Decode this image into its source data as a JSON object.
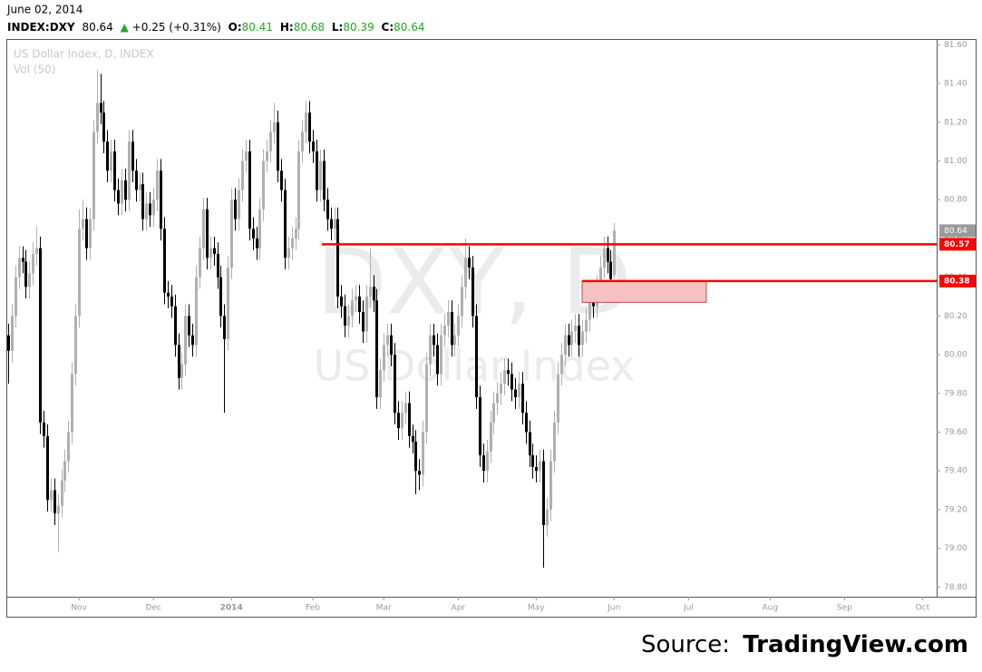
{
  "header": {
    "date": "June 02, 2014",
    "symbol": "INDEX:DXY",
    "last": "80.64",
    "change": "+0.25 (+0.31%)",
    "o_label": "O:",
    "o": "80.41",
    "h_label": "H:",
    "h": "80.68",
    "l_label": "L:",
    "l": "80.39",
    "c_label": "C:",
    "c": "80.64"
  },
  "chart_data": {
    "type": "candlestick",
    "watermark": "DXY, D",
    "watermark_sub": "US Dollar Index",
    "indicator": "Vol (50)",
    "up_color": "#b0b0b0",
    "down_color": "#000000",
    "xlim": [
      -0.5,
      262
    ],
    "xticks": [
      {
        "value": 20,
        "label": "Nov"
      },
      {
        "value": 41,
        "label": "Dec"
      },
      {
        "value": 63,
        "label": "2014"
      },
      {
        "value": 86,
        "label": "Feb"
      },
      {
        "value": 106,
        "label": "Mar"
      },
      {
        "value": 127,
        "label": "Apr"
      },
      {
        "value": 149,
        "label": "May"
      },
      {
        "value": 171,
        "label": "Jun"
      },
      {
        "value": 192,
        "label": "Jul"
      },
      {
        "value": 215,
        "label": "Aug"
      },
      {
        "value": 236,
        "label": "Sep"
      },
      {
        "value": 258,
        "label": "Oct"
      }
    ],
    "ylim": [
      78.75,
      81.63
    ],
    "yticks": [
      {
        "value": 78.8,
        "label": "78.80"
      },
      {
        "value": 79.0,
        "label": "79.00"
      },
      {
        "value": 79.2,
        "label": "79.20"
      },
      {
        "value": 79.4,
        "label": "79.40"
      },
      {
        "value": 79.6,
        "label": "79.60"
      },
      {
        "value": 79.8,
        "label": "79.80"
      },
      {
        "value": 80.0,
        "label": "80.00"
      },
      {
        "value": 80.2,
        "label": "80.20"
      },
      {
        "value": 80.4,
        "label": "80.40"
      },
      {
        "value": 80.6,
        "label": "80.60"
      },
      {
        "value": 80.8,
        "label": "80.80"
      },
      {
        "value": 81.0,
        "label": "81.00"
      },
      {
        "value": 81.2,
        "label": "81.20"
      },
      {
        "value": 81.4,
        "label": "81.40"
      },
      {
        "value": 81.6,
        "label": "81.60"
      }
    ],
    "last_price": 80.64,
    "hlines": [
      {
        "value": 80.57,
        "color": "#ff0000"
      },
      {
        "value": 80.38,
        "color": "#ff0000"
      }
    ],
    "zone": {
      "low": 80.27,
      "high": 80.38,
      "color": "#f4c2c2"
    },
    "series": [
      {
        "name": "US Dollar Index, D, INDEX",
        "open": [
          80.1,
          80.02,
          80.2,
          80.4,
          80.5,
          80.48,
          80.35,
          80.42,
          80.52,
          80.55,
          79.65,
          79.58,
          79.25,
          79.3,
          79.18,
          79.22,
          79.35,
          79.45,
          79.6,
          79.9,
          80.2,
          80.65,
          80.7,
          80.55,
          80.7,
          81.15,
          81.3,
          81.25,
          81.1,
          80.95,
          81.05,
          80.85,
          80.78,
          80.9,
          80.8,
          81.1,
          80.95,
          80.85,
          80.88,
          80.7,
          80.78,
          80.72,
          80.8,
          80.95,
          80.65,
          80.32,
          80.3,
          80.25,
          80.05,
          79.88,
          79.95,
          80.2,
          80.1,
          80.05,
          80.4,
          80.55,
          80.75,
          80.5,
          80.55,
          80.52,
          80.4,
          80.2,
          80.08,
          80.45,
          80.8,
          80.7,
          80.85,
          81.0,
          81.05,
          80.65,
          80.6,
          80.55,
          80.75,
          81.0,
          81.05,
          81.15,
          81.2,
          80.95,
          80.85,
          80.5,
          80.55,
          80.6,
          80.65,
          81.05,
          81.15,
          81.25,
          81.1,
          81.05,
          80.85,
          81.0,
          80.8,
          80.7,
          80.65,
          80.7,
          80.3,
          80.25,
          80.15,
          80.2,
          80.28,
          80.3,
          80.22,
          80.12,
          80.3,
          80.35,
          80.28,
          79.78,
          79.92,
          80.05,
          80.1,
          80.0,
          79.7,
          79.62,
          79.7,
          79.75,
          79.58,
          79.55,
          79.4,
          79.38,
          79.6,
          79.95,
          80.1,
          80.05,
          79.9,
          80.1,
          80.15,
          80.22,
          80.05,
          80.1,
          80.2,
          80.35,
          80.5,
          80.45,
          80.2,
          79.78,
          79.48,
          79.4,
          79.5,
          79.65,
          79.75,
          79.8,
          79.85,
          79.92,
          79.9,
          79.82,
          79.78,
          79.85,
          79.7,
          79.6,
          79.48,
          79.42,
          79.4,
          79.45,
          79.12,
          79.2,
          79.45,
          79.65,
          79.9,
          80.0,
          80.1,
          80.05,
          80.12,
          80.15,
          80.05,
          80.12,
          80.18,
          80.3,
          80.25,
          80.35,
          80.45,
          80.55,
          80.48,
          80.41
        ],
        "high": [
          80.16,
          80.26,
          80.46,
          80.56,
          80.56,
          80.54,
          80.48,
          80.58,
          80.66,
          80.61,
          79.71,
          79.64,
          79.36,
          79.36,
          79.28,
          79.41,
          79.51,
          79.66,
          79.96,
          80.26,
          80.75,
          80.8,
          80.76,
          80.76,
          81.21,
          81.47,
          81.45,
          81.31,
          81.16,
          81.11,
          81.11,
          80.91,
          80.96,
          80.96,
          81.16,
          81.16,
          81.01,
          80.94,
          80.94,
          80.84,
          80.84,
          80.86,
          81.01,
          81.01,
          80.71,
          80.38,
          80.36,
          80.31,
          80.11,
          80.01,
          80.26,
          80.26,
          80.16,
          80.46,
          80.61,
          80.81,
          80.81,
          80.61,
          80.61,
          80.58,
          80.46,
          80.26,
          80.51,
          80.86,
          80.86,
          80.91,
          81.06,
          81.11,
          81.11,
          80.71,
          80.66,
          80.81,
          81.06,
          81.11,
          81.21,
          81.3,
          81.26,
          81.01,
          80.91,
          80.61,
          80.66,
          80.71,
          81.11,
          81.21,
          81.31,
          81.31,
          81.16,
          81.11,
          81.06,
          81.06,
          80.86,
          80.76,
          80.76,
          80.76,
          80.36,
          80.31,
          80.26,
          80.34,
          80.36,
          80.36,
          80.28,
          80.36,
          80.55,
          80.41,
          80.34,
          79.98,
          80.11,
          80.16,
          80.16,
          80.06,
          79.76,
          79.76,
          79.81,
          79.81,
          79.64,
          79.61,
          79.46,
          79.66,
          80.01,
          80.16,
          80.16,
          80.11,
          80.16,
          80.21,
          80.28,
          80.28,
          80.16,
          80.26,
          80.41,
          80.6,
          80.56,
          80.51,
          80.26,
          79.84,
          79.54,
          79.56,
          79.71,
          79.81,
          79.86,
          79.91,
          79.98,
          79.98,
          79.96,
          79.88,
          79.91,
          79.91,
          79.76,
          79.66,
          79.54,
          79.48,
          79.51,
          79.51,
          79.26,
          79.51,
          79.71,
          79.96,
          80.06,
          80.16,
          80.16,
          80.18,
          80.21,
          80.21,
          80.18,
          80.24,
          80.36,
          80.36,
          80.41,
          80.51,
          80.61,
          80.61,
          80.54,
          80.68
        ],
        "low": [
          79.85,
          79.96,
          80.14,
          80.34,
          80.42,
          80.29,
          80.29,
          80.36,
          80.46,
          79.59,
          79.52,
          79.19,
          79.19,
          79.12,
          78.98,
          79.16,
          79.29,
          79.39,
          79.54,
          79.84,
          80.14,
          80.59,
          80.49,
          80.49,
          80.64,
          81.09,
          81.19,
          81.04,
          80.89,
          80.89,
          80.79,
          80.72,
          80.72,
          80.74,
          80.74,
          80.89,
          80.79,
          80.79,
          80.64,
          80.64,
          80.66,
          80.66,
          80.74,
          80.59,
          80.26,
          80.24,
          80.19,
          79.99,
          79.82,
          79.82,
          79.89,
          80.04,
          79.99,
          79.99,
          80.34,
          80.49,
          80.44,
          80.44,
          80.46,
          80.34,
          80.14,
          79.7,
          80.02,
          80.39,
          80.64,
          80.64,
          80.79,
          80.94,
          80.59,
          80.54,
          80.49,
          80.49,
          80.69,
          80.94,
          80.99,
          81.09,
          80.89,
          80.79,
          80.44,
          80.44,
          80.49,
          80.54,
          80.59,
          80.99,
          81.09,
          81.04,
          80.99,
          80.79,
          80.79,
          80.74,
          80.64,
          80.59,
          80.59,
          80.24,
          80.19,
          80.09,
          80.09,
          80.14,
          80.22,
          80.16,
          80.06,
          80.06,
          80.24,
          80.22,
          79.72,
          79.72,
          79.86,
          79.99,
          79.94,
          79.64,
          79.56,
          79.56,
          79.64,
          79.52,
          79.49,
          79.28,
          79.3,
          79.32,
          79.54,
          79.89,
          79.99,
          79.84,
          79.84,
          80.04,
          80.09,
          79.99,
          79.99,
          80.04,
          80.14,
          80.29,
          80.39,
          80.14,
          79.72,
          79.42,
          79.34,
          79.34,
          79.44,
          79.59,
          79.69,
          79.74,
          79.79,
          79.84,
          79.76,
          79.72,
          79.72,
          79.64,
          79.54,
          79.42,
          79.36,
          79.34,
          79.34,
          78.9,
          79.06,
          79.14,
          79.39,
          79.59,
          79.84,
          79.94,
          79.99,
          79.99,
          80.06,
          79.99,
          79.99,
          80.06,
          80.12,
          80.19,
          80.19,
          80.29,
          80.39,
          80.42,
          80.33,
          80.39
        ],
        "close": [
          80.02,
          80.2,
          80.4,
          80.5,
          80.48,
          80.35,
          80.42,
          80.52,
          80.55,
          79.65,
          79.58,
          79.25,
          79.3,
          79.18,
          79.22,
          79.35,
          79.45,
          79.6,
          79.9,
          80.2,
          80.65,
          80.7,
          80.55,
          80.7,
          81.15,
          81.3,
          81.25,
          81.1,
          80.95,
          81.05,
          80.85,
          80.78,
          80.9,
          80.8,
          81.1,
          80.95,
          80.85,
          80.88,
          80.7,
          80.78,
          80.72,
          80.8,
          80.95,
          80.65,
          80.32,
          80.3,
          80.25,
          80.05,
          79.88,
          79.95,
          80.2,
          80.1,
          80.05,
          80.4,
          80.55,
          80.75,
          80.5,
          80.55,
          80.52,
          80.4,
          80.2,
          80.08,
          80.45,
          80.8,
          80.7,
          80.85,
          81.0,
          81.05,
          80.65,
          80.6,
          80.55,
          80.75,
          81.0,
          81.05,
          81.15,
          81.2,
          80.95,
          80.85,
          80.5,
          80.55,
          80.6,
          80.65,
          81.05,
          81.15,
          81.25,
          81.1,
          81.05,
          80.85,
          81.0,
          80.8,
          80.7,
          80.65,
          80.7,
          80.3,
          80.25,
          80.15,
          80.2,
          80.28,
          80.3,
          80.22,
          80.12,
          80.3,
          80.35,
          80.28,
          79.78,
          79.92,
          80.05,
          80.1,
          80.0,
          79.7,
          79.62,
          79.7,
          79.75,
          79.58,
          79.55,
          79.4,
          79.38,
          79.6,
          79.95,
          80.1,
          80.05,
          79.9,
          80.1,
          80.15,
          80.22,
          80.05,
          80.1,
          80.2,
          80.35,
          80.5,
          80.45,
          80.2,
          79.78,
          79.48,
          79.4,
          79.5,
          79.65,
          79.75,
          79.8,
          79.85,
          79.92,
          79.9,
          79.82,
          79.78,
          79.85,
          79.7,
          79.6,
          79.48,
          79.42,
          79.4,
          79.45,
          79.12,
          79.2,
          79.45,
          79.65,
          79.9,
          80.0,
          80.1,
          80.05,
          80.12,
          80.15,
          80.05,
          80.12,
          80.18,
          80.3,
          80.25,
          80.35,
          80.45,
          80.55,
          80.48,
          80.39,
          80.64
        ]
      }
    ]
  },
  "source": {
    "prefix": "Source:",
    "brand": "TradingView.com"
  }
}
